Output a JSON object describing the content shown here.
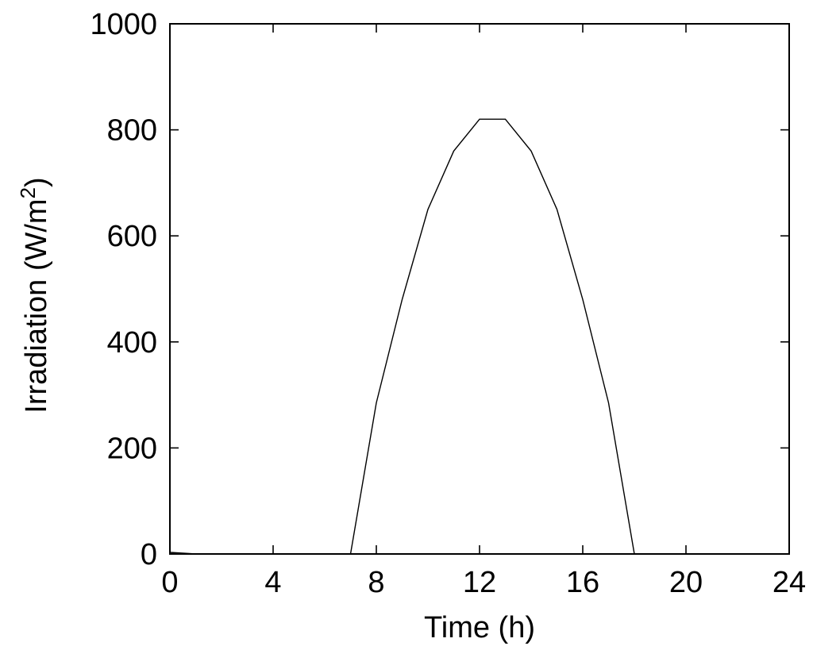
{
  "chart_data": {
    "type": "line",
    "xlabel": "Time (h)",
    "ylabel_main": "Irradiation (W/m",
    "ylabel_sup": "2",
    "ylabel_close": ")",
    "xlim": [
      0,
      24
    ],
    "ylim": [
      0,
      1000
    ],
    "xticks": [
      0,
      4,
      8,
      12,
      16,
      20,
      24
    ],
    "yticks": [
      0,
      200,
      400,
      600,
      800,
      1000
    ],
    "grid": false,
    "series": [
      {
        "color": "#000000",
        "x": [
          0,
          1,
          2,
          3,
          4,
          5,
          6,
          7,
          8,
          9,
          10,
          11,
          12,
          13,
          14,
          15,
          16,
          17,
          18,
          19,
          20,
          21,
          22,
          23,
          24
        ],
        "y": [
          3,
          0,
          0,
          0,
          0,
          0,
          0,
          0,
          285,
          480,
          650,
          760,
          820,
          820,
          760,
          650,
          480,
          285,
          0,
          0,
          0,
          0,
          0,
          0,
          0
        ]
      }
    ]
  }
}
